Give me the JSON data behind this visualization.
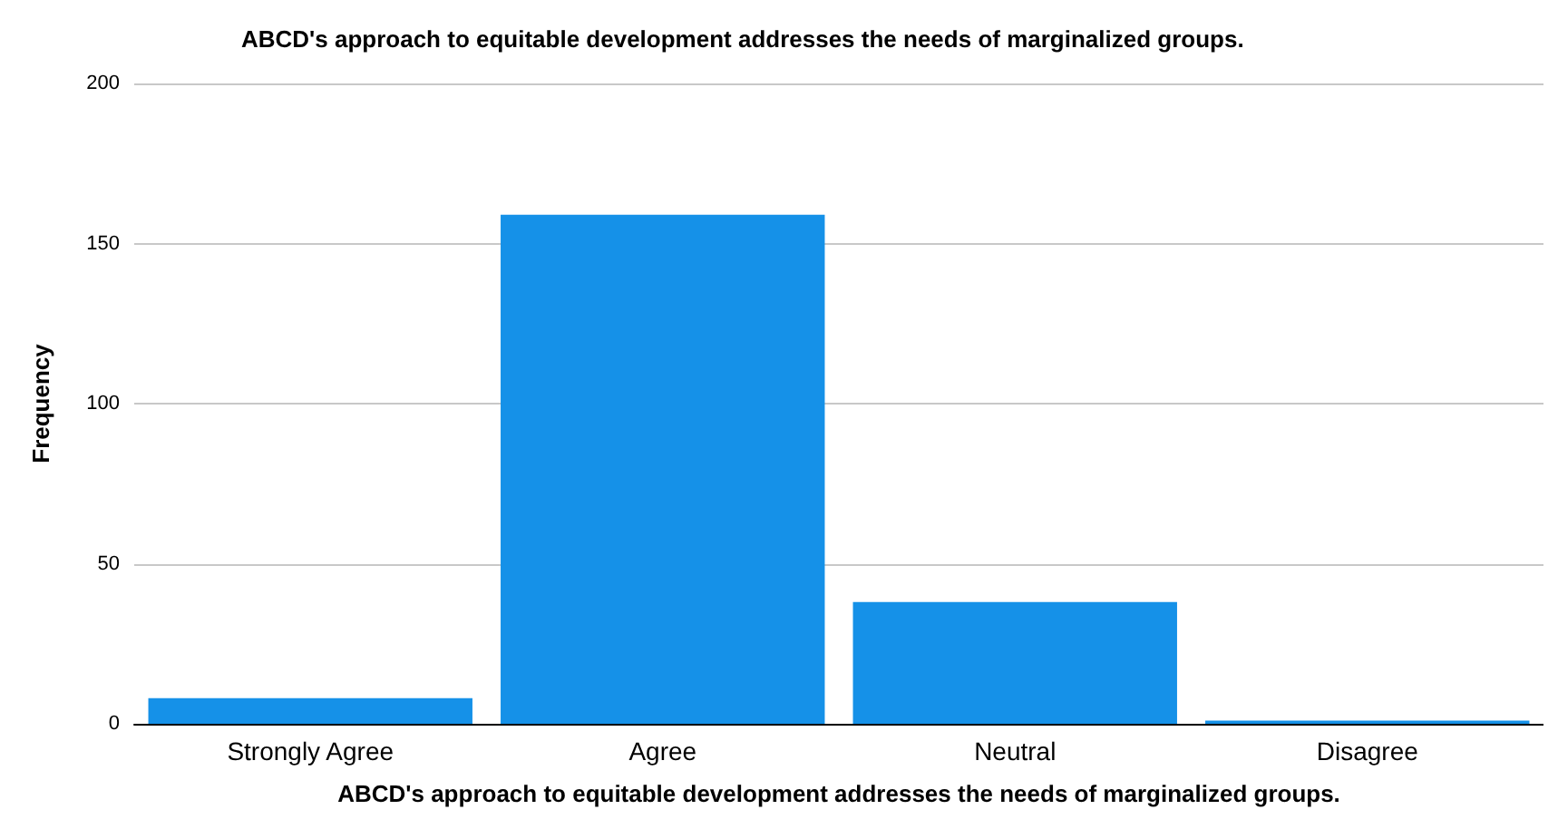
{
  "chart_data": {
    "type": "bar",
    "title": "ABCD's approach to equitable development addresses the needs of marginalized groups.",
    "xlabel": "ABCD's approach to equitable development addresses the needs of marginalized groups.",
    "ylabel": "Frequency",
    "categories": [
      "Strongly Agree",
      "Agree",
      "Neutral",
      "Disagree"
    ],
    "values": [
      8,
      159,
      38,
      1
    ],
    "color": "#1591e8",
    "ylim": [
      0,
      200
    ],
    "yticks": [
      0,
      50,
      100,
      150,
      200
    ],
    "grid": "y"
  }
}
